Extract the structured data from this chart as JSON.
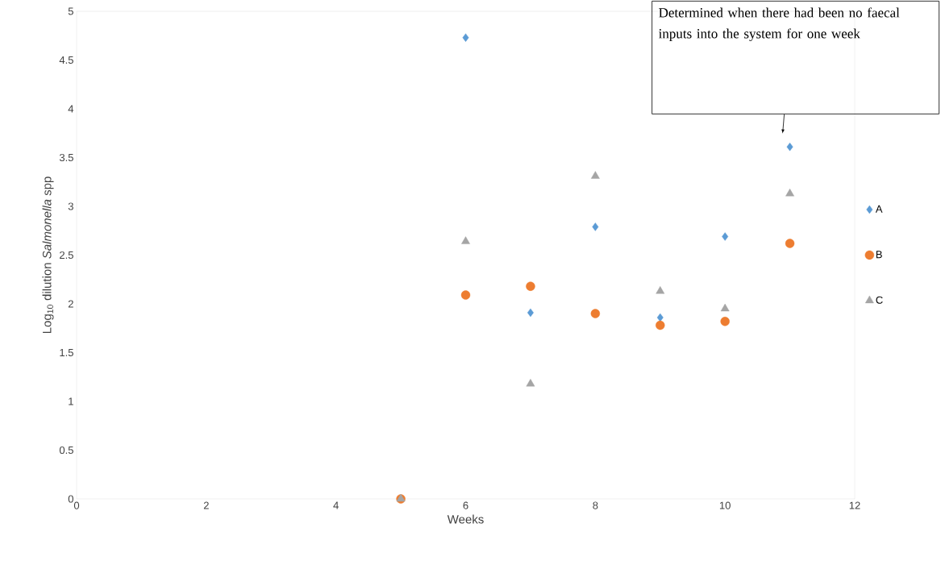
{
  "chart_data": {
    "type": "scatter",
    "xlabel": "Weeks",
    "ylabel": "Log$_{10}$ dilution *Salmonella* spp",
    "x": [
      5,
      6,
      7,
      8,
      9,
      10,
      11
    ],
    "series": [
      {
        "name": "A",
        "color": "#5b9bd5",
        "marker": "diamond",
        "values": [
          null,
          4.73,
          1.91,
          2.79,
          1.86,
          2.69,
          3.61
        ]
      },
      {
        "name": "B",
        "color": "#ed7d31",
        "marker": "circle",
        "values": [
          0,
          2.09,
          2.18,
          1.9,
          1.78,
          1.82,
          2.62
        ]
      },
      {
        "name": "C",
        "color": "#a5a5a5",
        "marker": "triangle",
        "values": [
          0,
          2.64,
          1.18,
          3.31,
          2.13,
          1.95,
          3.13
        ]
      }
    ],
    "xlim": [
      0,
      12
    ],
    "xticks": [
      0,
      2,
      4,
      6,
      8,
      10,
      12
    ],
    "ylim": [
      0,
      5
    ],
    "yticks": [
      0,
      0.5,
      1,
      1.5,
      2,
      2.5,
      3,
      3.5,
      4,
      4.5,
      5
    ],
    "legend": "right",
    "grid": false,
    "annotations": [
      "Determined when there had been no faecal inputs into the system for one week"
    ]
  }
}
